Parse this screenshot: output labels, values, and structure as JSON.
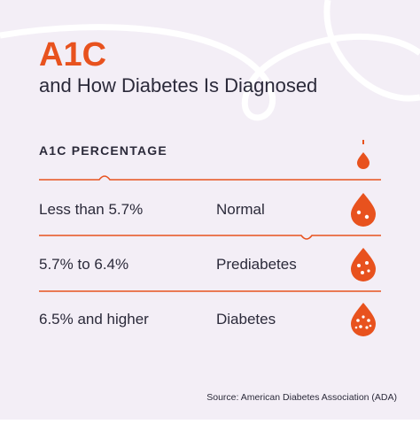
{
  "header": {
    "title": "A1C",
    "subtitle": "and How Diabetes Is Diagnosed"
  },
  "table": {
    "header": "A1C PERCENTAGE",
    "rows": [
      [
        "Less than 5.7%",
        "Normal"
      ],
      [
        "5.7% to 6.4%",
        "Prediabetes"
      ],
      [
        "6.5% and higher",
        "Diabetes"
      ]
    ]
  },
  "source": "Source: American Diabetes Association (ADA)"
}
